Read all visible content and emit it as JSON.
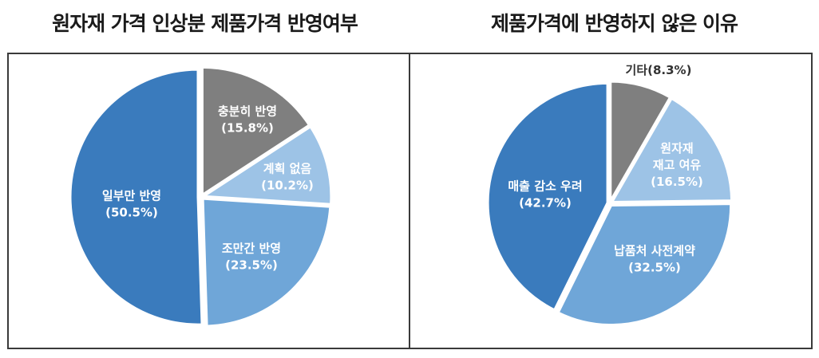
{
  "chart_data": [
    {
      "type": "pie",
      "title": "원자재 가격 인상분 제품가격 반영여부",
      "categories": [
        "충분히 반영",
        "계획 없음",
        "조만간 반영",
        "일부만 반영"
      ],
      "values": [
        15.8,
        10.2,
        23.5,
        50.5
      ],
      "labels": [
        {
          "lines": [
            "충분히 반영",
            "(15.8%)"
          ],
          "color": "#ffffff"
        },
        {
          "lines": [
            "계획 없음",
            "(10.2%)"
          ],
          "color": "#ffffff"
        },
        {
          "lines": [
            "조만간 반영",
            "(23.5%)"
          ],
          "color": "#ffffff"
        },
        {
          "lines": [
            "일부만 반영",
            "(50.5%)"
          ],
          "color": "#ffffff"
        }
      ],
      "colors": [
        "#7f7f7f",
        "#9dc3e6",
        "#6fa6d8",
        "#3a7bbd"
      ],
      "start_angle_deg": 0,
      "direction": "clockwise",
      "unit": "%"
    },
    {
      "type": "pie",
      "title": "제품가격에 반영하지 않은 이유",
      "categories": [
        "기타",
        "원자재 재고 여유",
        "납품처 사전계약",
        "매출 감소 우려"
      ],
      "values": [
        8.3,
        16.5,
        32.5,
        42.7
      ],
      "labels": [
        {
          "lines": [
            "기타(8.3%)"
          ],
          "color": "#333333",
          "outside": true
        },
        {
          "lines": [
            "원자재",
            "재고 여유",
            "(16.5%)"
          ],
          "color": "#ffffff"
        },
        {
          "lines": [
            "납품처 사전계약",
            "(32.5%)"
          ],
          "color": "#ffffff"
        },
        {
          "lines": [
            "매출 감소 우려",
            "(42.7%)"
          ],
          "color": "#ffffff"
        }
      ],
      "colors": [
        "#7f7f7f",
        "#9dc3e6",
        "#6fa6d8",
        "#3a7bbd"
      ],
      "start_angle_deg": 0,
      "direction": "clockwise",
      "unit": "%"
    }
  ],
  "titles": {
    "left": "원자재 가격 인상분 제품가격 반영여부",
    "right": "제품가격에 반영하지 않은 이유"
  }
}
